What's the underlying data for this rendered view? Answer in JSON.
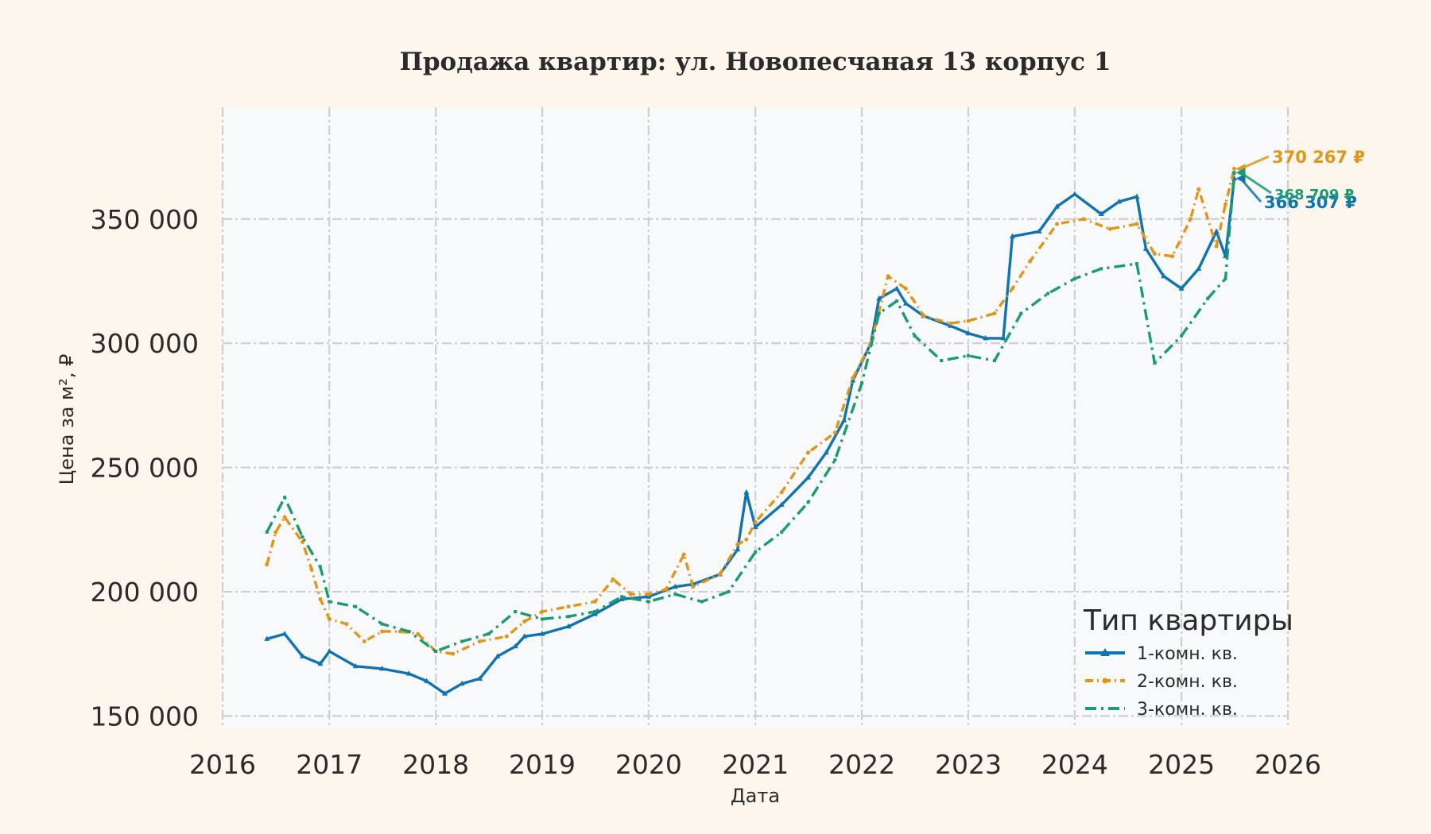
{
  "chart_data": {
    "type": "line",
    "title": "Продажа квартир: ул. Новопесчаная 13 корпус 1",
    "xlabel": "Дата",
    "ylabel": "Цена за м², ₽",
    "xlim": [
      "2016-01-01",
      "2026-01-01"
    ],
    "ylim": [
      145000,
      395000
    ],
    "x_ticks": [
      "2016",
      "2017",
      "2018",
      "2019",
      "2020",
      "2021",
      "2022",
      "2023",
      "2024",
      "2025",
      "2026"
    ],
    "y_ticks": [
      150000,
      200000,
      250000,
      300000,
      350000
    ],
    "y_tick_labels": [
      "150 000",
      "200 000",
      "250 000",
      "300 000",
      "350 000"
    ],
    "grid": true,
    "legend": {
      "title": "Тип квартиры",
      "placement": "lower-right"
    },
    "series": [
      {
        "name": "1-комн. кв.",
        "color": "#0f74b1",
        "end_label": "366 307 ₽",
        "points": [
          [
            "2016-06-01",
            181000
          ],
          [
            "2016-08-01",
            183000
          ],
          [
            "2016-10-01",
            174000
          ],
          [
            "2016-12-01",
            171000
          ],
          [
            "2017-01-01",
            176000
          ],
          [
            "2017-04-01",
            170000
          ],
          [
            "2017-07-01",
            169000
          ],
          [
            "2017-10-01",
            167000
          ],
          [
            "2017-12-01",
            164000
          ],
          [
            "2018-02-01",
            159000
          ],
          [
            "2018-04-01",
            163000
          ],
          [
            "2018-06-01",
            165000
          ],
          [
            "2018-08-01",
            174000
          ],
          [
            "2018-10-01",
            178000
          ],
          [
            "2018-11-01",
            182000
          ],
          [
            "2019-01-01",
            183000
          ],
          [
            "2019-04-01",
            186000
          ],
          [
            "2019-07-01",
            191000
          ],
          [
            "2019-10-01",
            197000
          ],
          [
            "2020-01-01",
            198000
          ],
          [
            "2020-04-01",
            202000
          ],
          [
            "2020-06-01",
            203000
          ],
          [
            "2020-09-01",
            207000
          ],
          [
            "2020-11-01",
            217000
          ],
          [
            "2020-12-01",
            240000
          ],
          [
            "2021-01-01",
            226000
          ],
          [
            "2021-04-01",
            235000
          ],
          [
            "2021-07-01",
            246000
          ],
          [
            "2021-09-01",
            256000
          ],
          [
            "2021-11-01",
            269000
          ],
          [
            "2021-12-01",
            285000
          ],
          [
            "2022-02-01",
            300000
          ],
          [
            "2022-03-01",
            318000
          ],
          [
            "2022-05-01",
            322000
          ],
          [
            "2022-06-01",
            316000
          ],
          [
            "2022-08-01",
            311000
          ],
          [
            "2022-11-01",
            307000
          ],
          [
            "2023-01-01",
            304000
          ],
          [
            "2023-03-01",
            302000
          ],
          [
            "2023-05-01",
            302000
          ],
          [
            "2023-06-01",
            343000
          ],
          [
            "2023-09-01",
            345000
          ],
          [
            "2023-11-01",
            355000
          ],
          [
            "2024-01-01",
            360000
          ],
          [
            "2024-04-01",
            352000
          ],
          [
            "2024-06-01",
            357000
          ],
          [
            "2024-08-01",
            359000
          ],
          [
            "2024-09-01",
            338000
          ],
          [
            "2024-11-01",
            327000
          ],
          [
            "2025-01-01",
            322000
          ],
          [
            "2025-03-01",
            330000
          ],
          [
            "2025-05-01",
            345000
          ],
          [
            "2025-06-01",
            335000
          ],
          [
            "2025-07-01",
            366307
          ]
        ]
      },
      {
        "name": "2-комн. кв.",
        "color": "#e0961b",
        "end_label": "370 267 ₽",
        "points": [
          [
            "2016-06-01",
            211000
          ],
          [
            "2016-07-01",
            224000
          ],
          [
            "2016-08-01",
            230000
          ],
          [
            "2016-10-01",
            220000
          ],
          [
            "2016-11-01",
            209000
          ],
          [
            "2016-12-01",
            197000
          ],
          [
            "2017-01-01",
            189000
          ],
          [
            "2017-03-01",
            187000
          ],
          [
            "2017-05-01",
            180000
          ],
          [
            "2017-07-01",
            184000
          ],
          [
            "2017-09-01",
            184000
          ],
          [
            "2017-11-01",
            183000
          ],
          [
            "2018-01-01",
            176000
          ],
          [
            "2018-03-01",
            175000
          ],
          [
            "2018-06-01",
            180000
          ],
          [
            "2018-09-01",
            182000
          ],
          [
            "2018-11-01",
            188000
          ],
          [
            "2019-01-01",
            192000
          ],
          [
            "2019-04-01",
            194000
          ],
          [
            "2019-07-01",
            196000
          ],
          [
            "2019-09-01",
            205000
          ],
          [
            "2019-11-01",
            199000
          ],
          [
            "2020-01-01",
            199000
          ],
          [
            "2020-03-01",
            201000
          ],
          [
            "2020-05-01",
            215000
          ],
          [
            "2020-06-01",
            202000
          ],
          [
            "2020-09-01",
            207000
          ],
          [
            "2020-11-01",
            219000
          ],
          [
            "2020-12-01",
            221000
          ],
          [
            "2021-01-01",
            228000
          ],
          [
            "2021-04-01",
            240000
          ],
          [
            "2021-07-01",
            256000
          ],
          [
            "2021-10-01",
            264000
          ],
          [
            "2021-12-01",
            286000
          ],
          [
            "2022-02-01",
            300000
          ],
          [
            "2022-04-01",
            327000
          ],
          [
            "2022-06-01",
            322000
          ],
          [
            "2022-08-01",
            311000
          ],
          [
            "2022-11-01",
            308000
          ],
          [
            "2023-01-01",
            309000
          ],
          [
            "2023-04-01",
            312000
          ],
          [
            "2023-06-01",
            322000
          ],
          [
            "2023-08-01",
            333000
          ],
          [
            "2023-11-01",
            348000
          ],
          [
            "2024-02-01",
            350000
          ],
          [
            "2024-05-01",
            346000
          ],
          [
            "2024-08-01",
            348000
          ],
          [
            "2024-10-01",
            336000
          ],
          [
            "2024-12-01",
            335000
          ],
          [
            "2025-02-01",
            350000
          ],
          [
            "2025-03-01",
            362000
          ],
          [
            "2025-05-01",
            339000
          ],
          [
            "2025-06-01",
            356000
          ],
          [
            "2025-07-01",
            370267
          ]
        ]
      },
      {
        "name": "3-комн. кв.",
        "color": "#1c9a72",
        "end_label": "368 709 ₽",
        "points": [
          [
            "2016-06-01",
            224000
          ],
          [
            "2016-08-01",
            238000
          ],
          [
            "2016-10-01",
            222000
          ],
          [
            "2016-12-01",
            210000
          ],
          [
            "2017-01-01",
            196000
          ],
          [
            "2017-04-01",
            194000
          ],
          [
            "2017-07-01",
            187000
          ],
          [
            "2017-10-01",
            184000
          ],
          [
            "2018-01-01",
            176000
          ],
          [
            "2018-04-01",
            180000
          ],
          [
            "2018-07-01",
            183000
          ],
          [
            "2018-10-01",
            192000
          ],
          [
            "2019-01-01",
            189000
          ],
          [
            "2019-04-01",
            190000
          ],
          [
            "2019-07-01",
            192000
          ],
          [
            "2019-10-01",
            198000
          ],
          [
            "2020-01-01",
            196000
          ],
          [
            "2020-04-01",
            199000
          ],
          [
            "2020-07-01",
            196000
          ],
          [
            "2020-10-01",
            200000
          ],
          [
            "2021-01-01",
            216000
          ],
          [
            "2021-04-01",
            224000
          ],
          [
            "2021-07-01",
            236000
          ],
          [
            "2021-10-01",
            253000
          ],
          [
            "2022-01-01",
            284000
          ],
          [
            "2022-03-01",
            312000
          ],
          [
            "2022-05-01",
            317000
          ],
          [
            "2022-07-01",
            303000
          ],
          [
            "2022-10-01",
            293000
          ],
          [
            "2023-01-01",
            295000
          ],
          [
            "2023-04-01",
            293000
          ],
          [
            "2023-07-01",
            312000
          ],
          [
            "2023-10-01",
            320000
          ],
          [
            "2024-01-01",
            326000
          ],
          [
            "2024-04-01",
            330000
          ],
          [
            "2024-08-01",
            332000
          ],
          [
            "2024-10-01",
            292000
          ],
          [
            "2025-01-01",
            303000
          ],
          [
            "2025-04-01",
            318000
          ],
          [
            "2025-06-01",
            326000
          ],
          [
            "2025-07-01",
            368709
          ]
        ]
      }
    ]
  }
}
